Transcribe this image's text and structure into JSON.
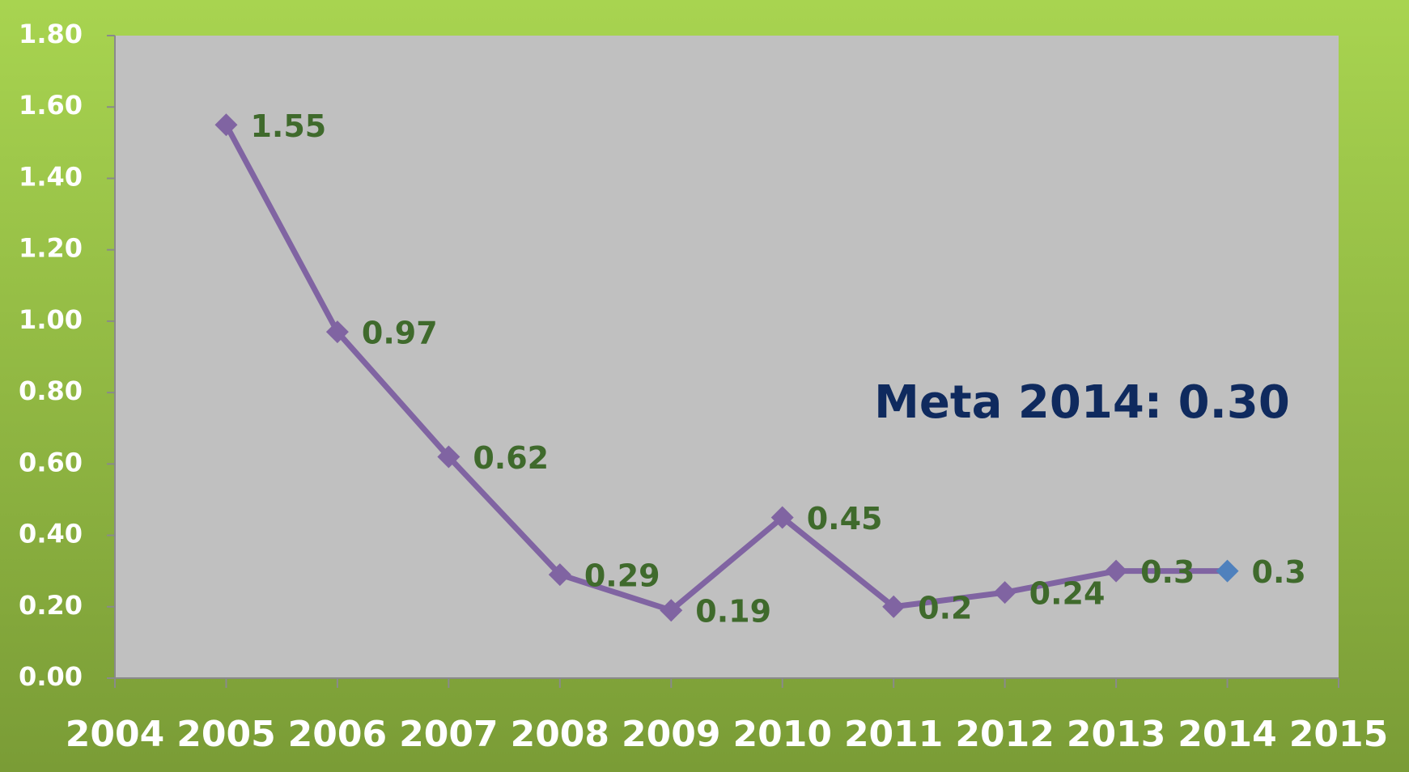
{
  "chart_data": {
    "type": "line",
    "annotation": "Meta 2014: 0.30",
    "x": [
      2005,
      2006,
      2007,
      2008,
      2009,
      2010,
      2011,
      2012,
      2013,
      2014
    ],
    "series": [
      {
        "color": "#8064a2",
        "values": [
          1.55,
          0.97,
          0.62,
          0.29,
          0.19,
          0.45,
          0.2,
          0.24,
          0.3,
          0.3
        ]
      }
    ],
    "marker_colors": [
      "#8064a2",
      "#8064a2",
      "#8064a2",
      "#8064a2",
      "#8064a2",
      "#8064a2",
      "#8064a2",
      "#8064a2",
      "#8064a2",
      "#4f81bd"
    ],
    "label_color": "#3f6a2c",
    "xlim": [
      2004,
      2015
    ],
    "xticks": [
      2004,
      2005,
      2006,
      2007,
      2008,
      2009,
      2010,
      2011,
      2012,
      2013,
      2014,
      2015
    ],
    "ylim": [
      0,
      1.8
    ],
    "yticks": [
      {
        "value": 0,
        "label": "0.00"
      },
      {
        "value": 0.2,
        "label": "0.20"
      },
      {
        "value": 0.4,
        "label": "0.40"
      },
      {
        "value": 0.6,
        "label": "0.60"
      },
      {
        "value": 0.8,
        "label": "0.80"
      },
      {
        "value": 1.0,
        "label": "1.00"
      },
      {
        "value": 1.2,
        "label": "1.20"
      },
      {
        "value": 1.4,
        "label": "1.40"
      },
      {
        "value": 1.6,
        "label": "1.60"
      },
      {
        "value": 1.8,
        "label": "1.80"
      }
    ]
  }
}
